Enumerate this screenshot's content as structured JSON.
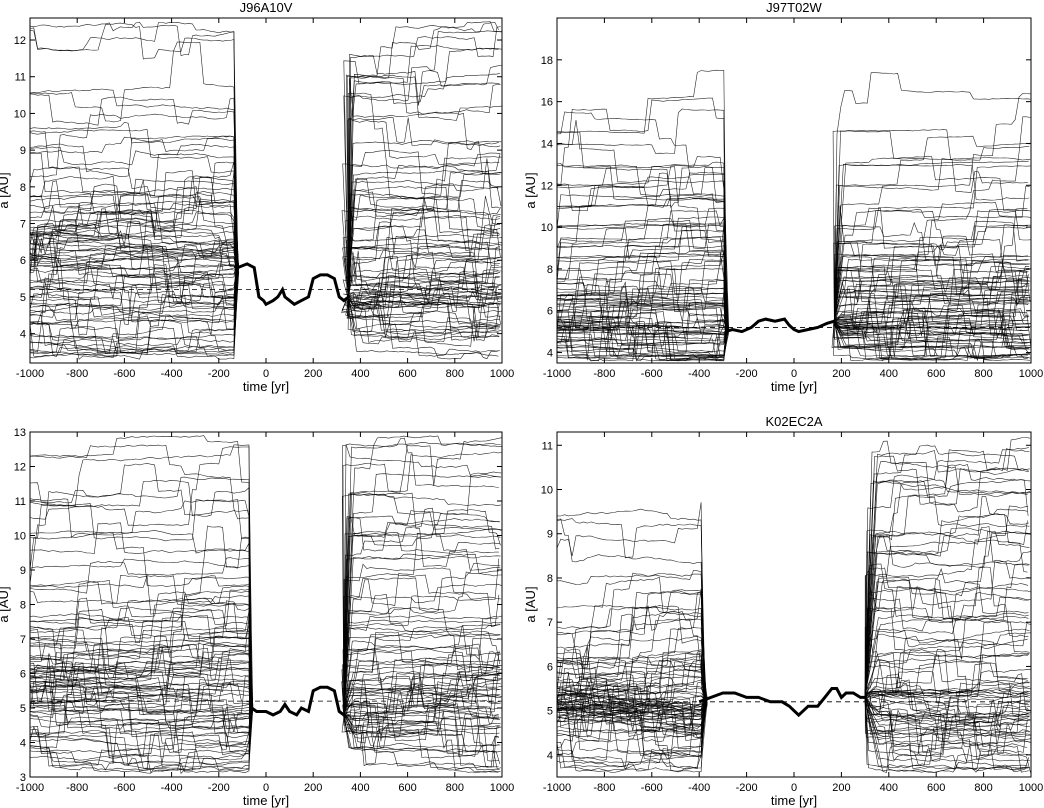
{
  "chart_data": [
    {
      "type": "line",
      "title": "J96A10V",
      "xlabel": "time [yr]",
      "ylabel": "a [AU]",
      "xlim": [
        -1000,
        1000
      ],
      "ylim": [
        3.2,
        12.6
      ],
      "xticks": [
        -1000,
        -800,
        -600,
        -400,
        -200,
        0,
        200,
        400,
        600,
        800,
        1000
      ],
      "yticks": [
        4,
        5,
        6,
        7,
        8,
        9,
        10,
        11,
        12
      ],
      "reference_line": 5.2,
      "grid": false,
      "legend": "none",
      "line_color": "#000000",
      "nominal": {
        "x": [
          -120,
          -80,
          -50,
          -30,
          -10,
          0,
          30,
          50,
          70,
          80,
          100,
          120,
          150,
          180,
          200,
          230,
          260,
          290,
          310,
          330,
          350
        ],
        "y": [
          5.8,
          5.9,
          5.8,
          5.0,
          4.9,
          4.8,
          4.9,
          5.0,
          5.2,
          5.0,
          4.9,
          4.8,
          4.9,
          5.0,
          5.5,
          5.6,
          5.6,
          5.5,
          5.0,
          4.9,
          5.0
        ]
      },
      "clones": {
        "count": 90,
        "before_window": [
          -1000,
          -130
        ],
        "after_window": [
          320,
          1000
        ],
        "before_values": [
          3.5,
          3.8,
          4.0,
          4.2,
          4.3,
          4.4,
          4.5,
          4.6,
          4.7,
          4.8,
          4.9,
          5.0,
          5.1,
          5.3,
          5.5,
          5.6,
          5.7,
          5.8,
          5.9,
          6.0,
          6.0,
          6.1,
          6.1,
          6.2,
          6.2,
          6.3,
          6.4,
          6.5,
          6.6,
          6.7,
          6.8,
          7.0,
          7.2,
          7.4,
          7.6,
          7.8,
          8.0,
          8.5,
          9.0,
          9.5,
          10.5,
          11.2,
          12.3
        ],
        "after_values": [
          3.8,
          4.0,
          4.2,
          4.4,
          4.5,
          4.5,
          4.6,
          4.7,
          4.8,
          4.9,
          5.0,
          5.1,
          5.3,
          5.5,
          5.7,
          5.9,
          6.1,
          6.3,
          6.6,
          7.0,
          7.4,
          7.8,
          8.2,
          8.7,
          9.2,
          9.8,
          10.5,
          11.0,
          11.5
        ]
      }
    },
    {
      "type": "line",
      "title": "J97T02W",
      "xlabel": "time [yr]",
      "ylabel": "a [AU]",
      "xlim": [
        -1000,
        1000
      ],
      "ylim": [
        3.5,
        20
      ],
      "xticks": [
        -1000,
        -800,
        -600,
        -400,
        -200,
        0,
        200,
        400,
        600,
        800,
        1000
      ],
      "yticks": [
        4,
        6,
        8,
        10,
        12,
        14,
        16,
        18
      ],
      "reference_line": 5.2,
      "grid": false,
      "legend": "none",
      "line_color": "#000000",
      "nominal": {
        "x": [
          -290,
          -260,
          -220,
          -180,
          -150,
          -120,
          -80,
          -40,
          -20,
          0,
          20,
          60,
          100,
          140,
          170
        ],
        "y": [
          5.0,
          5.1,
          5.0,
          5.2,
          5.5,
          5.6,
          5.5,
          5.6,
          5.3,
          5.1,
          5.0,
          5.1,
          5.2,
          5.4,
          5.5
        ]
      },
      "clones": {
        "count": 90,
        "before_window": [
          -1000,
          -290
        ],
        "after_window": [
          160,
          1000
        ],
        "before_values": [
          4.0,
          4.3,
          4.5,
          4.7,
          4.9,
          5.0,
          5.1,
          5.2,
          5.3,
          5.4,
          5.5,
          5.6,
          5.7,
          5.8,
          6.0,
          6.2,
          6.4,
          6.6,
          6.8,
          7.0,
          7.3,
          7.6,
          8.0,
          8.5,
          9.0,
          9.5,
          10.0,
          11.0,
          12.0,
          13.0,
          14.0,
          14.5
        ],
        "after_values": [
          4.2,
          4.5,
          4.7,
          4.9,
          5.0,
          5.1,
          5.2,
          5.3,
          5.4,
          5.5,
          5.6,
          5.8,
          6.0,
          6.3,
          6.6,
          7.0,
          7.5,
          8.0,
          8.6,
          9.3,
          10.0,
          11.0,
          12.0,
          13.0,
          14.5
        ]
      }
    },
    {
      "type": "line",
      "title": "",
      "xlabel": "time [yr]",
      "ylabel": "a [AU]",
      "xlim": [
        -1000,
        1000
      ],
      "ylim": [
        3,
        13
      ],
      "xticks": [
        -1000,
        -800,
        -600,
        -400,
        -200,
        0,
        200,
        400,
        600,
        800,
        1000
      ],
      "yticks": [
        3,
        4,
        5,
        6,
        7,
        8,
        9,
        10,
        11,
        12,
        13
      ],
      "reference_line": 5.2,
      "grid": false,
      "legend": "none",
      "line_color": "#000000",
      "nominal": {
        "x": [
          -60,
          -40,
          -10,
          0,
          30,
          60,
          80,
          100,
          130,
          150,
          180,
          200,
          230,
          260,
          290,
          310,
          330
        ],
        "y": [
          5.0,
          4.9,
          4.9,
          4.9,
          4.8,
          4.9,
          5.1,
          4.9,
          4.8,
          5.0,
          4.9,
          5.5,
          5.6,
          5.6,
          5.5,
          4.9,
          4.8
        ]
      },
      "clones": {
        "count": 90,
        "before_window": [
          -1000,
          -70
        ],
        "after_window": [
          320,
          1000
        ],
        "before_values": [
          3.5,
          3.8,
          4.0,
          4.2,
          4.4,
          4.5,
          4.6,
          4.7,
          4.8,
          4.9,
          5.0,
          5.1,
          5.3,
          5.5,
          5.6,
          5.7,
          5.8,
          5.9,
          6.0,
          6.0,
          6.1,
          6.2,
          6.3,
          6.4,
          6.5,
          6.7,
          7.0,
          7.3,
          7.6,
          8.0,
          8.5,
          9.0,
          9.5,
          10.0,
          10.5,
          11.0,
          11.6,
          12.3
        ],
        "after_values": [
          3.8,
          4.0,
          4.2,
          4.3,
          4.4,
          4.5,
          4.6,
          4.7,
          4.8,
          4.9,
          5.0,
          5.1,
          5.3,
          5.5,
          5.8,
          6.0,
          6.3,
          6.6,
          7.0,
          7.4,
          7.8,
          8.2,
          8.8,
          9.4,
          10.0,
          10.6,
          11.2,
          12.0,
          12.6
        ]
      }
    },
    {
      "type": "line",
      "title": "K02EC2A",
      "xlabel": "time [yr]",
      "ylabel": "a [AU]",
      "xlim": [
        -1000,
        1000
      ],
      "ylim": [
        3.5,
        11.3
      ],
      "xticks": [
        -1000,
        -800,
        -600,
        -400,
        -200,
        0,
        200,
        400,
        600,
        800,
        1000
      ],
      "yticks": [
        4,
        5,
        6,
        7,
        8,
        9,
        10,
        11
      ],
      "reference_line": 5.2,
      "grid": false,
      "legend": "none",
      "line_color": "#000000",
      "nominal": {
        "x": [
          -400,
          -350,
          -300,
          -250,
          -200,
          -150,
          -100,
          -50,
          -20,
          0,
          20,
          60,
          100,
          130,
          160,
          180,
          200,
          220,
          250,
          280,
          300
        ],
        "y": [
          5.2,
          5.3,
          5.4,
          5.4,
          5.3,
          5.3,
          5.2,
          5.2,
          5.1,
          5.0,
          4.9,
          5.1,
          5.1,
          5.3,
          5.5,
          5.5,
          5.3,
          5.4,
          5.4,
          5.3,
          5.3
        ]
      },
      "clones": {
        "count": 90,
        "before_window": [
          -1000,
          -380
        ],
        "after_window": [
          300,
          1000
        ],
        "before_values": [
          3.9,
          4.1,
          4.3,
          4.5,
          4.7,
          4.8,
          4.9,
          5.0,
          5.0,
          5.1,
          5.1,
          5.1,
          5.2,
          5.2,
          5.2,
          5.3,
          5.3,
          5.3,
          5.4,
          5.4,
          5.5,
          5.5,
          5.6,
          5.7,
          5.9,
          6.1,
          6.4,
          6.8,
          7.3,
          8.0,
          9.3
        ],
        "after_values": [
          3.8,
          4.0,
          4.3,
          4.5,
          4.7,
          4.9,
          5.0,
          5.1,
          5.2,
          5.3,
          5.4,
          5.5,
          5.7,
          5.9,
          6.2,
          6.5,
          6.8,
          7.2,
          7.6,
          8.0,
          8.5,
          9.0,
          9.6,
          10.2,
          10.8
        ]
      }
    }
  ]
}
